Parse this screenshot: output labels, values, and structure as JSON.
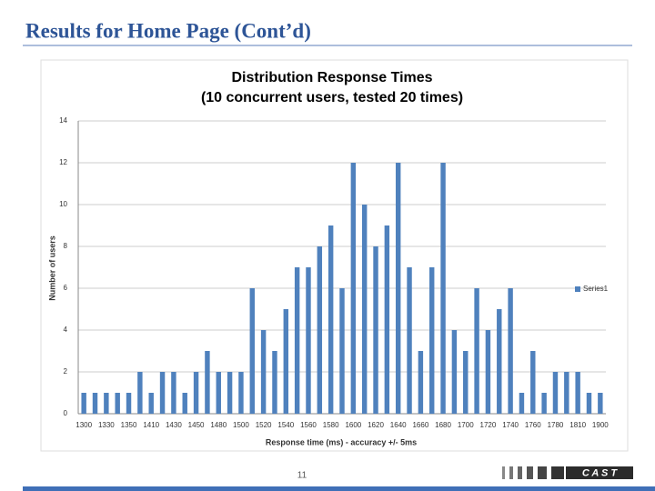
{
  "slide": {
    "title": "Results for Home Page (Cont’d)",
    "page_number": "11",
    "logo": "C A S T"
  },
  "chart_data": {
    "type": "bar",
    "title": "Distribution Response Times",
    "subtitle": "(10 concurrent users, tested 20 times)",
    "x_label": "Response time (ms) -  accuracy  +/- 5ms",
    "y_label": "Number of users",
    "categories": [
      "1300",
      null,
      "1330",
      null,
      "1350",
      null,
      "1410",
      null,
      "1430",
      null,
      "1450",
      null,
      "1480",
      null,
      "1500",
      null,
      "1520",
      null,
      "1540",
      null,
      "1560",
      null,
      "1580",
      null,
      "1600",
      null,
      "1620",
      null,
      "1640",
      null,
      "1660",
      null,
      "1680",
      null,
      "1700",
      null,
      "1720",
      null,
      "1740",
      null,
      "1760",
      null,
      "1780",
      null,
      "1810",
      null,
      "1900"
    ],
    "series": [
      {
        "name": "Series1",
        "color": "#4f81bd",
        "values": [
          1,
          1,
          1,
          1,
          1,
          2,
          1,
          2,
          2,
          1,
          2,
          3,
          2,
          2,
          2,
          6,
          4,
          3,
          5,
          7,
          7,
          8,
          9,
          6,
          12,
          10,
          8,
          9,
          12,
          7,
          3,
          7,
          12,
          4,
          3,
          6,
          4,
          5,
          6,
          1,
          3,
          1,
          2,
          2,
          2,
          1,
          1
        ]
      }
    ],
    "ylim": [
      0,
      14
    ],
    "yticks": [
      0,
      2,
      4,
      6,
      8,
      10,
      12,
      14
    ],
    "grid": true,
    "legend": "right"
  }
}
